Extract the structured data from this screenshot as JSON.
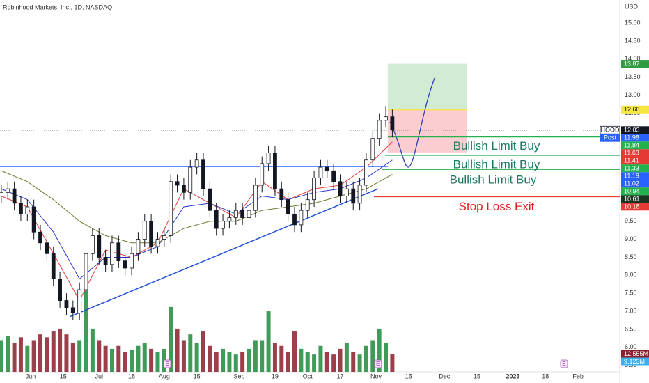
{
  "chart_data": {
    "type": "candlestick",
    "title": "Robinhood Markets, Inc., 1D, NASDAQ",
    "currency": "USD",
    "xlim": [
      -9.4,
      180.8
    ],
    "ylim": [
      5.32,
      15.64
    ],
    "xticks": [
      {
        "value": 0,
        "label": "Jun"
      },
      {
        "value": 10,
        "label": "15"
      },
      {
        "value": 21,
        "label": "Jul"
      },
      {
        "value": 31,
        "label": "18"
      },
      {
        "value": 41,
        "label": "Aug"
      },
      {
        "value": 51,
        "label": "15"
      },
      {
        "value": 64,
        "label": "Sep"
      },
      {
        "value": 75,
        "label": "19"
      },
      {
        "value": 85,
        "label": "Oct"
      },
      {
        "value": 95,
        "label": "17"
      },
      {
        "value": 106,
        "label": "Nov"
      },
      {
        "value": 116,
        "label": "15"
      },
      {
        "value": 127,
        "label": "Dec"
      },
      {
        "value": 137,
        "label": "15"
      },
      {
        "value": 148,
        "label": "2023"
      },
      {
        "value": 158,
        "label": "18"
      },
      {
        "value": 168,
        "label": "Feb"
      }
    ],
    "yticks": [
      {
        "value": 5.5,
        "label": "5.50"
      },
      {
        "value": 6,
        "label": "6.00"
      },
      {
        "value": 6.5,
        "label": "6.50"
      },
      {
        "value": 7,
        "label": "7.00"
      },
      {
        "value": 7.5,
        "label": "7.50"
      },
      {
        "value": 8,
        "label": "8.00"
      },
      {
        "value": 8.5,
        "label": "8.50"
      },
      {
        "value": 9,
        "label": "9.00"
      },
      {
        "value": 9.5,
        "label": "9.50"
      },
      {
        "value": 10,
        "label": "10.00"
      },
      {
        "value": 10.5,
        "label": "10.50"
      },
      {
        "value": 11,
        "label": "11.00"
      },
      {
        "value": 11.5,
        "label": "11.50"
      },
      {
        "value": 12,
        "label": "12.00"
      },
      {
        "value": 12.5,
        "label": "12.50"
      },
      {
        "value": 13,
        "label": "13.00"
      },
      {
        "value": 13.5,
        "label": "13.50"
      },
      {
        "value": 14,
        "label": "14.00"
      },
      {
        "value": 14.5,
        "label": "14.50"
      },
      {
        "value": 15,
        "label": "15.00"
      }
    ],
    "x": [
      -9,
      -7,
      -5,
      -3,
      -1,
      1,
      3,
      5,
      7,
      9,
      11,
      13,
      15,
      17,
      19,
      21,
      23,
      25,
      27,
      29,
      31,
      33,
      35,
      37,
      39,
      41,
      43,
      45,
      47,
      49,
      51,
      53,
      55,
      57,
      59,
      61,
      63,
      65,
      67,
      69,
      71,
      73,
      75,
      77,
      79,
      81,
      83,
      85,
      87,
      89,
      91,
      93,
      95,
      97,
      99,
      101,
      103,
      105,
      107,
      109,
      111
    ],
    "open": [
      10.2,
      10.3,
      10.4,
      10.0,
      9.7,
      9.9,
      9.2,
      8.9,
      8.6,
      7.9,
      7.3,
      7.1,
      6.95,
      7.6,
      8.6,
      9.1,
      8.5,
      8.3,
      8.9,
      8.4,
      8.2,
      8.6,
      9.0,
      9.5,
      8.8,
      9.0,
      9.1,
      10.6,
      10.5,
      10.3,
      11.0,
      11.2,
      10.4,
      9.8,
      9.3,
      9.5,
      9.6,
      9.8,
      9.6,
      9.8,
      10.5,
      11.1,
      11.4,
      10.4,
      10.1,
      9.7,
      9.4,
      9.8,
      10.1,
      10.7,
      11.0,
      10.9,
      10.6,
      10.2,
      10.4,
      10.0,
      10.5,
      11.2,
      11.8,
      12.3,
      12.4
    ],
    "high": [
      10.5,
      10.6,
      10.6,
      10.2,
      10.1,
      10.1,
      9.4,
      9.1,
      8.8,
      8.1,
      7.5,
      7.3,
      7.8,
      8.8,
      9.3,
      9.3,
      8.7,
      9.1,
      9.1,
      8.6,
      8.8,
      9.2,
      9.7,
      9.7,
      9.2,
      9.3,
      10.8,
      10.8,
      10.7,
      11.2,
      11.4,
      11.4,
      10.6,
      10.0,
      9.7,
      9.8,
      10.0,
      10.0,
      10.0,
      10.7,
      11.3,
      11.6,
      11.6,
      10.6,
      10.3,
      9.9,
      10.0,
      10.3,
      10.9,
      11.2,
      11.2,
      11.1,
      10.8,
      10.6,
      10.6,
      10.7,
      11.4,
      12.0,
      12.5,
      12.7,
      12.6
    ],
    "low": [
      10.0,
      10.1,
      9.8,
      9.5,
      9.5,
      9.0,
      8.7,
      8.4,
      7.7,
      7.1,
      6.9,
      6.75,
      6.75,
      7.4,
      8.4,
      8.3,
      8.1,
      8.1,
      8.2,
      8.0,
      8.0,
      8.4,
      8.8,
      8.6,
      8.6,
      8.8,
      8.9,
      10.3,
      10.1,
      10.1,
      10.8,
      10.2,
      9.6,
      9.1,
      9.1,
      9.3,
      9.4,
      9.4,
      9.4,
      9.6,
      10.3,
      10.9,
      10.2,
      9.9,
      9.5,
      9.2,
      9.2,
      9.6,
      9.9,
      10.5,
      10.7,
      10.4,
      10.0,
      10.0,
      9.8,
      9.8,
      10.3,
      11.0,
      11.6,
      12.1,
      11.83
    ],
    "close": [
      10.3,
      10.4,
      10.0,
      9.7,
      9.9,
      9.2,
      8.9,
      8.6,
      7.9,
      7.3,
      7.1,
      6.95,
      7.6,
      8.6,
      9.1,
      8.5,
      8.3,
      8.9,
      8.4,
      8.2,
      8.6,
      9.0,
      9.5,
      8.8,
      9.0,
      9.1,
      10.6,
      10.5,
      10.3,
      11.0,
      11.2,
      10.4,
      9.8,
      9.3,
      9.5,
      9.6,
      9.8,
      9.6,
      9.8,
      10.5,
      11.1,
      11.4,
      10.4,
      10.1,
      9.7,
      9.4,
      9.8,
      10.1,
      10.7,
      11.0,
      10.9,
      10.6,
      10.2,
      10.4,
      10.0,
      10.5,
      11.2,
      11.8,
      12.3,
      12.4,
      12.03
    ],
    "volume": [
      22,
      25,
      20,
      24,
      18,
      22,
      26,
      24,
      28,
      30,
      26,
      20,
      22,
      67,
      30,
      22,
      18,
      16,
      18,
      14,
      15,
      18,
      20,
      16,
      14,
      16,
      45,
      30,
      22,
      26,
      20,
      28,
      18,
      14,
      16,
      14,
      12,
      14,
      16,
      22,
      22,
      42,
      20,
      18,
      14,
      28,
      16,
      14,
      12,
      18,
      14,
      12,
      16,
      20,
      14,
      12,
      18,
      22,
      30,
      20,
      12.555
    ],
    "up_color": "#ffffff",
    "down_color": "#131722",
    "vol_up_color": "#1f8a3b",
    "vol_down_color": "#8a1f2c",
    "moving_averages": {
      "x": [
        -9,
        -1,
        7,
        15,
        23,
        31,
        39,
        47,
        55,
        63,
        71,
        79,
        87,
        95,
        103,
        111
      ],
      "series": [
        {
          "color": "#e53935",
          "values": [
            10.2,
            9.9,
            8.6,
            7.3,
            8.7,
            8.5,
            8.9,
            10.4,
            10.0,
            9.6,
            10.6,
            10.1,
            10.4,
            10.5,
            11.0,
            11.7
          ]
        },
        {
          "color": "#2634c4",
          "values": [
            10.4,
            10.1,
            9.2,
            7.9,
            8.5,
            8.5,
            8.8,
            9.9,
            10.0,
            9.7,
            10.2,
            10.1,
            10.3,
            10.4,
            10.7,
            11.2
          ]
        },
        {
          "color": "#6b7a2a",
          "values": [
            10.9,
            10.6,
            10.1,
            9.5,
            9.1,
            8.9,
            8.9,
            9.3,
            9.5,
            9.5,
            9.8,
            9.9,
            10.0,
            10.2,
            10.4,
            10.8
          ]
        }
      ]
    },
    "trendline": {
      "x": [
        12,
        106.6
      ],
      "y": [
        6.85,
        10.4
      ],
      "color": "#1e4fd6"
    },
    "price_labels": [
      {
        "value": 13.87,
        "label": "13.87",
        "color": "#2e9c3f"
      },
      {
        "value": 12.6,
        "label": "12.60",
        "color": "#f5e642"
      },
      {
        "value": 12.03,
        "label": "12.03",
        "color": "#131722",
        "tag": "HOOD"
      },
      {
        "value": 11.98,
        "label": "11.98",
        "color": "#2962ff",
        "tag": "Post"
      },
      {
        "value": 11.84,
        "label": "11.84",
        "color": "#22b14c"
      },
      {
        "value": 11.63,
        "label": "11.63",
        "color": "#e53935"
      },
      {
        "value": 11.41,
        "label": "11.41",
        "color": "#e53935"
      },
      {
        "value": 11.33,
        "label": "11.33",
        "color": "#22b14c"
      },
      {
        "value": 11.19,
        "label": "11.19",
        "color": "#2962ff"
      },
      {
        "value": 11.02,
        "label": "11.02",
        "color": "#2962ff"
      },
      {
        "value": 10.94,
        "label": "10.94",
        "color": "#22b14c"
      },
      {
        "value": 10.61,
        "label": "10.61",
        "color": "#1b3320"
      },
      {
        "value": 10.18,
        "label": "10.18",
        "color": "#e53935"
      }
    ],
    "volume_labels": [
      {
        "value": 12.555,
        "label": "12.555M",
        "color": "#8a1f2c"
      },
      {
        "value": 9.123,
        "label": "9.123M",
        "color": "#3ab0f0"
      }
    ],
    "position_box_x": [
      109.6,
      133.8
    ],
    "annotations": [
      {
        "text": "Bullish Limit Buy",
        "color": "#1b7a63"
      },
      {
        "text": "Bullish Limit Buy",
        "color": "#1b7a63"
      },
      {
        "text": "Bullish Limit Buy",
        "color": "#1b7a63"
      },
      {
        "text": "Stop Loss Exit",
        "color": "#e02020"
      }
    ],
    "earnings": {
      "x": [
        41.9,
        106.6,
        163.7
      ],
      "labels": [
        "E",
        "E",
        "E"
      ]
    }
  }
}
